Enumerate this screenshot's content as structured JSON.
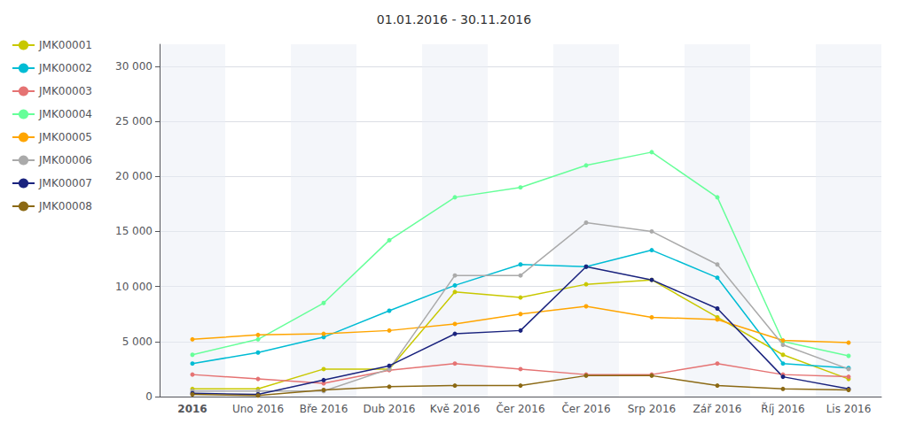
{
  "chart_data": {
    "type": "line",
    "title": "01.01.2016 - 30.11.2016",
    "categories": [
      "2016",
      "Uno 2016",
      "Bře 2016",
      "Dub 2016",
      "Kvě 2016",
      "Čer 2016",
      "Čer 2016",
      "Srp 2016",
      "Zář 2016",
      "Říj 2016",
      "Lis 2016"
    ],
    "series": [
      {
        "name": "JMK00001",
        "color": "#c8c800",
        "values": [
          700,
          700,
          2500,
          2500,
          9500,
          9000,
          10200,
          10600,
          7200,
          3800,
          1600
        ]
      },
      {
        "name": "JMK00002",
        "color": "#00bcd4",
        "values": [
          3000,
          4000,
          5400,
          7800,
          10100,
          12000,
          11800,
          13300,
          10800,
          3000,
          2600
        ]
      },
      {
        "name": "JMK00003",
        "color": "#e57373",
        "values": [
          2000,
          1600,
          1200,
          2400,
          3000,
          2500,
          2000,
          2000,
          3000,
          2000,
          1800
        ]
      },
      {
        "name": "JMK00004",
        "color": "#66ff99",
        "values": [
          3800,
          5200,
          8500,
          14200,
          18100,
          19000,
          21000,
          22200,
          18100,
          5000,
          3700
        ]
      },
      {
        "name": "JMK00005",
        "color": "#ffa500",
        "values": [
          5200,
          5600,
          5700,
          6000,
          6600,
          7500,
          8200,
          7200,
          7000,
          5100,
          4900
        ]
      },
      {
        "name": "JMK00006",
        "color": "#aaaaaa",
        "values": [
          500,
          500,
          500,
          2500,
          11000,
          11000,
          15800,
          15000,
          12000,
          4700,
          2500
        ]
      },
      {
        "name": "JMK00007",
        "color": "#1a237e",
        "values": [
          300,
          200,
          1500,
          2800,
          5700,
          6000,
          11800,
          10600,
          8000,
          1800,
          700
        ]
      },
      {
        "name": "JMK00008",
        "color": "#8B6914",
        "values": [
          200,
          100,
          600,
          900,
          1000,
          1000,
          1900,
          1900,
          1000,
          700,
          600
        ]
      }
    ],
    "ylim": [
      0,
      32000
    ],
    "yticks": [
      0,
      {
        "value": 5000,
        "label": "5 000"
      },
      {
        "value": 10000,
        "label": "10 000"
      },
      {
        "value": 15000,
        "label": "15 000"
      },
      {
        "value": 20000,
        "label": "20 000"
      },
      {
        "value": 25000,
        "label": "25 000"
      },
      {
        "value": 30000,
        "label": "30 000"
      }
    ],
    "grid": true,
    "legend": "left",
    "marker": "circle"
  }
}
